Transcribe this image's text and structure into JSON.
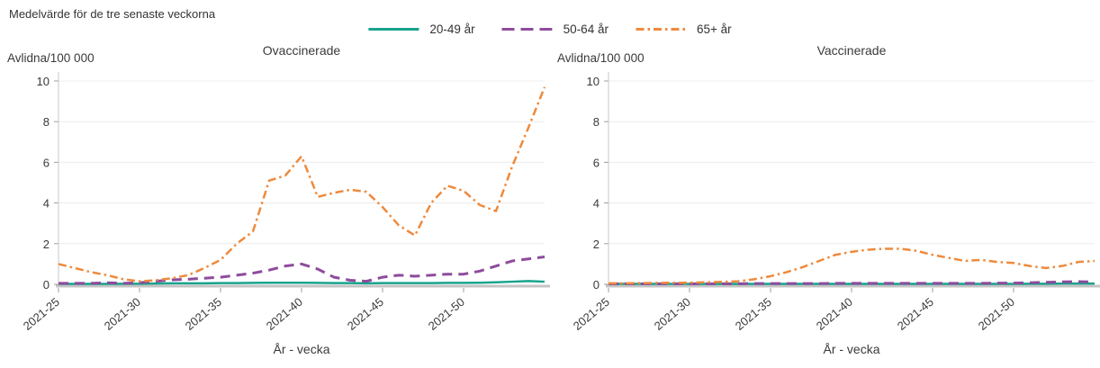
{
  "page": {
    "title": "Medelvärde för de tre senaste veckorna"
  },
  "legend": {
    "items": [
      {
        "label": "20-49 år",
        "color": "#18a38d",
        "dash": "solid"
      },
      {
        "label": "50-64 år",
        "color": "#8e4b9c",
        "dash": "dashed"
      },
      {
        "label": "65+ år",
        "color": "#ee8a3d",
        "dash": "dashdot"
      }
    ]
  },
  "chart_data": [
    {
      "type": "line",
      "title": "Ovaccinerade",
      "ylabel": "Avlidna/100 000",
      "xlabel": "År - vecka",
      "ylim": [
        0,
        10
      ],
      "yticks": [
        0,
        2,
        4,
        6,
        8,
        10
      ],
      "grid": "horizontal",
      "legend_position": "top-center-shared",
      "n_points": 31,
      "x_tick_positions": [
        0,
        5,
        10,
        15,
        20,
        25
      ],
      "x_tick_labels": [
        "2021-25",
        "2021-30",
        "2021-35",
        "2021-40",
        "2021-45",
        "2021-50"
      ],
      "series": [
        {
          "name": "20-49 år",
          "color": "#18a38d",
          "dash": "solid",
          "values": [
            0.02,
            0.02,
            0.02,
            0.02,
            0.03,
            0.03,
            0.04,
            0.05,
            0.05,
            0.05,
            0.06,
            0.06,
            0.07,
            0.08,
            0.08,
            0.08,
            0.07,
            0.06,
            0.06,
            0.05,
            0.06,
            0.06,
            0.06,
            0.06,
            0.07,
            0.07,
            0.08,
            0.1,
            0.13,
            0.16,
            0.13
          ]
        },
        {
          "name": "50-64 år",
          "color": "#8e4b9c",
          "dash": "dashed",
          "values": [
            0.05,
            0.05,
            0.05,
            0.08,
            0.05,
            0.08,
            0.15,
            0.22,
            0.25,
            0.3,
            0.35,
            0.45,
            0.55,
            0.7,
            0.9,
            1.0,
            0.75,
            0.35,
            0.2,
            0.15,
            0.35,
            0.45,
            0.4,
            0.45,
            0.5,
            0.5,
            0.65,
            0.9,
            1.15,
            1.25,
            1.35
          ]
        },
        {
          "name": "65+ år",
          "color": "#ee8a3d",
          "dash": "dashdot",
          "values": [
            1.0,
            0.8,
            0.6,
            0.45,
            0.25,
            0.15,
            0.2,
            0.3,
            0.45,
            0.8,
            1.2,
            2.0,
            2.6,
            5.1,
            5.35,
            6.3,
            4.3,
            4.5,
            4.65,
            4.55,
            3.8,
            2.9,
            2.4,
            4.0,
            4.85,
            4.6,
            3.9,
            3.6,
            5.8,
            7.7,
            9.7
          ]
        }
      ]
    },
    {
      "type": "line",
      "title": "Vaccinerade",
      "ylabel": "Avlidna/100 000",
      "xlabel": "År - vecka",
      "ylim": [
        0,
        10
      ],
      "yticks": [
        0,
        2,
        4,
        6,
        8,
        10
      ],
      "grid": "horizontal",
      "legend_position": "top-center-shared",
      "n_points": 31,
      "x_tick_positions": [
        0,
        5,
        10,
        15,
        20,
        25
      ],
      "x_tick_labels": [
        "2021-25",
        "2021-30",
        "2021-35",
        "2021-40",
        "2021-45",
        "2021-50"
      ],
      "series": [
        {
          "name": "20-49 år",
          "color": "#18a38d",
          "dash": "solid",
          "values": [
            0.02,
            0.02,
            0.02,
            0.02,
            0.02,
            0.02,
            0.02,
            0.02,
            0.02,
            0.02,
            0.02,
            0.02,
            0.02,
            0.02,
            0.02,
            0.02,
            0.02,
            0.02,
            0.02,
            0.02,
            0.02,
            0.02,
            0.02,
            0.02,
            0.02,
            0.02,
            0.03,
            0.03,
            0.04,
            0.04,
            0.04
          ]
        },
        {
          "name": "50-64 år",
          "color": "#8e4b9c",
          "dash": "dashed",
          "values": [
            0.03,
            0.03,
            0.03,
            0.03,
            0.03,
            0.03,
            0.03,
            0.03,
            0.03,
            0.04,
            0.04,
            0.04,
            0.04,
            0.04,
            0.05,
            0.05,
            0.05,
            0.05,
            0.05,
            0.05,
            0.05,
            0.05,
            0.05,
            0.05,
            0.06,
            0.06,
            0.08,
            0.1,
            0.12,
            0.13,
            0.12
          ]
        },
        {
          "name": "65+ år",
          "color": "#ee8a3d",
          "dash": "dashdot",
          "values": [
            0.05,
            0.05,
            0.06,
            0.07,
            0.08,
            0.08,
            0.1,
            0.12,
            0.15,
            0.25,
            0.4,
            0.6,
            0.85,
            1.15,
            1.45,
            1.6,
            1.7,
            1.75,
            1.75,
            1.65,
            1.45,
            1.3,
            1.15,
            1.2,
            1.1,
            1.05,
            0.9,
            0.8,
            0.9,
            1.1,
            1.15
          ]
        }
      ]
    }
  ]
}
